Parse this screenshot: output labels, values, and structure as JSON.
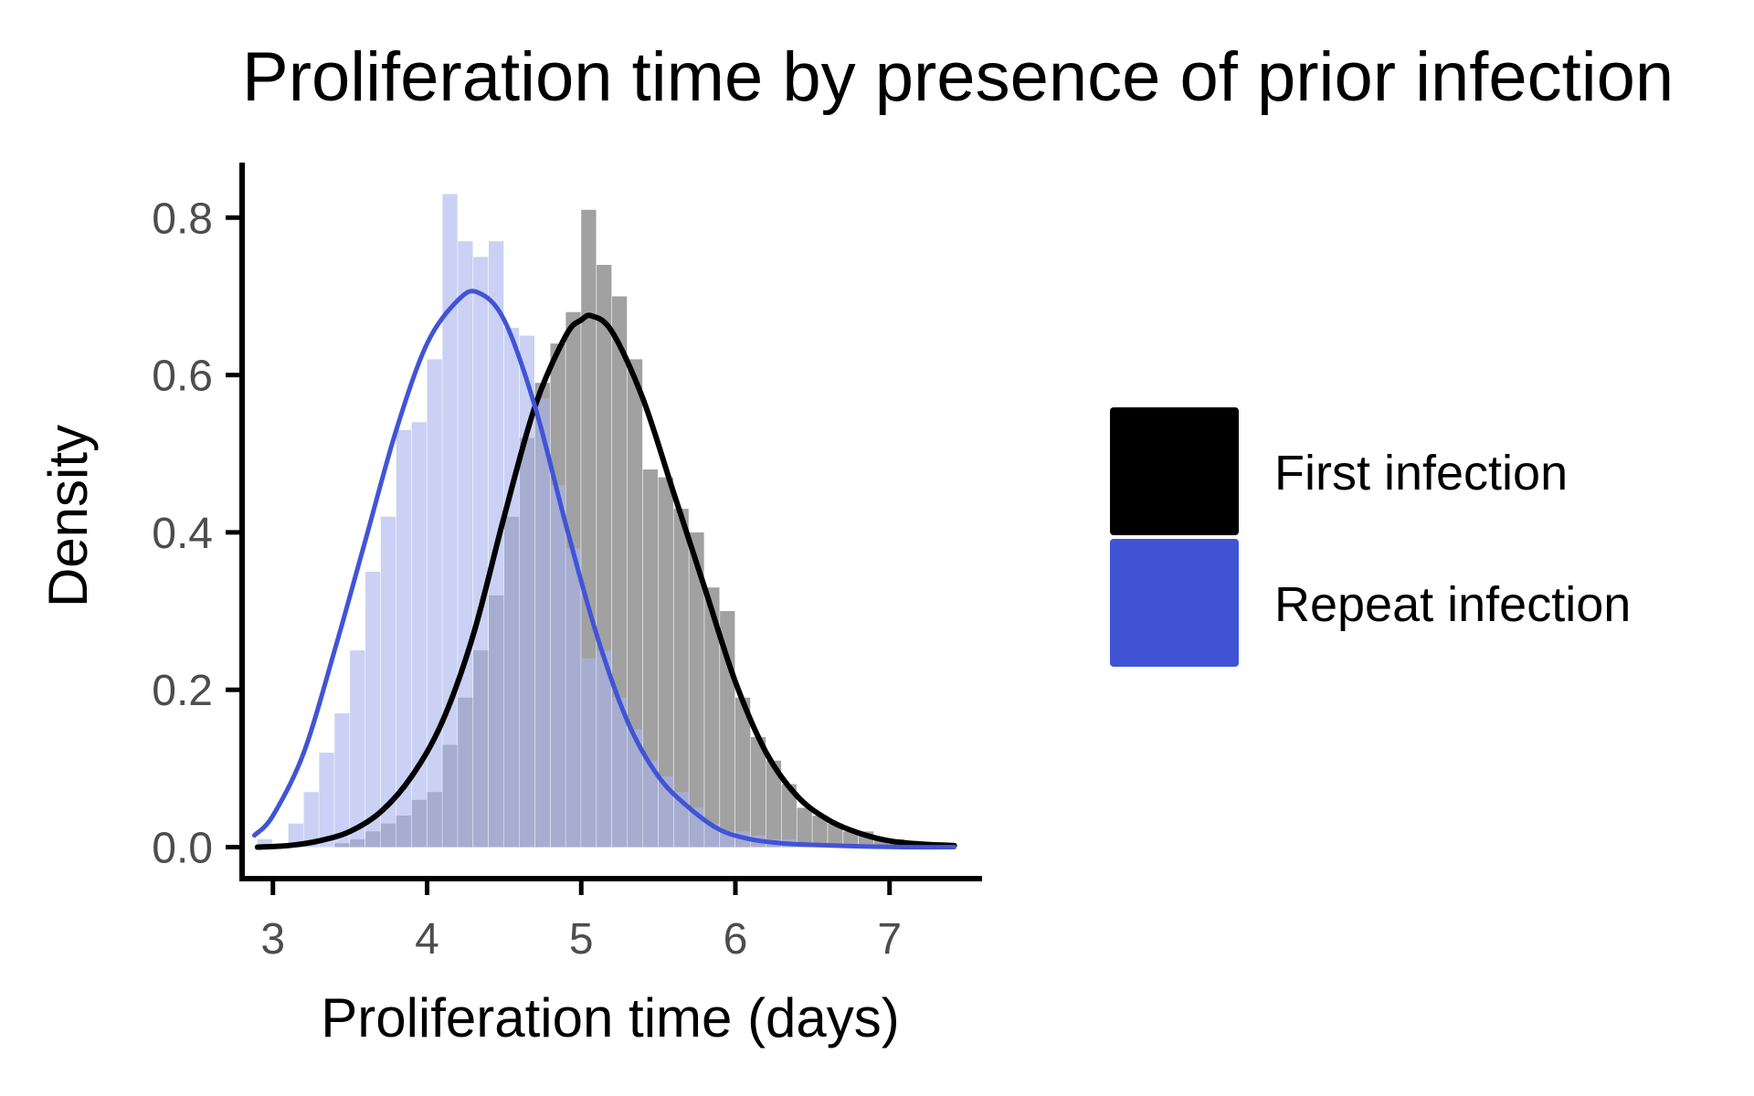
{
  "chart_data": {
    "type": "histogram",
    "title": "Proliferation time by presence of prior infection",
    "xlabel": "Proliferation time (days)",
    "ylabel": "Density",
    "xlim": [
      2.8,
      7.6
    ],
    "ylim": [
      -0.04,
      0.87
    ],
    "x_ticks": [
      3,
      4,
      5,
      6,
      7
    ],
    "x_tick_labels": [
      "3",
      "4",
      "5",
      "6",
      "7"
    ],
    "y_ticks": [
      0.0,
      0.2,
      0.4,
      0.6,
      0.8
    ],
    "y_tick_labels": [
      "0.0",
      "0.2",
      "0.4",
      "0.6",
      "0.8"
    ],
    "grid": false,
    "legend_position": "right",
    "bin_width": 0.1,
    "series": [
      {
        "name": "First infection",
        "color": "#000000",
        "bar_color": "#8c8c8c",
        "bins_start": [
          3.4,
          3.5,
          3.6,
          3.7,
          3.8,
          3.9,
          4.0,
          4.1,
          4.2,
          4.3,
          4.4,
          4.5,
          4.6,
          4.7,
          4.8,
          4.9,
          5.0,
          5.1,
          5.2,
          5.3,
          5.4,
          5.5,
          5.6,
          5.7,
          5.8,
          5.9,
          6.0,
          6.1,
          6.2,
          6.3,
          6.4,
          6.5,
          6.6,
          6.7,
          6.8,
          6.9,
          7.0,
          7.1,
          7.2,
          7.3
        ],
        "density": [
          0.005,
          0.01,
          0.02,
          0.03,
          0.04,
          0.06,
          0.07,
          0.13,
          0.19,
          0.25,
          0.32,
          0.42,
          0.52,
          0.59,
          0.64,
          0.68,
          0.81,
          0.74,
          0.7,
          0.62,
          0.48,
          0.47,
          0.43,
          0.4,
          0.33,
          0.3,
          0.19,
          0.14,
          0.11,
          0.08,
          0.05,
          0.04,
          0.03,
          0.02,
          0.02,
          0.01,
          0.01,
          0.005,
          0.003,
          0.002
        ],
        "curve_x": [
          2.9,
          3.1,
          3.3,
          3.5,
          3.7,
          3.9,
          4.1,
          4.3,
          4.5,
          4.7,
          4.9,
          5.0,
          5.07,
          5.2,
          5.4,
          5.6,
          5.8,
          6.0,
          6.2,
          6.4,
          6.6,
          6.8,
          7.0,
          7.2,
          7.42
        ],
        "curve_y": [
          0.0,
          0.002,
          0.008,
          0.02,
          0.045,
          0.09,
          0.16,
          0.27,
          0.42,
          0.56,
          0.65,
          0.67,
          0.675,
          0.655,
          0.57,
          0.45,
          0.33,
          0.21,
          0.12,
          0.065,
          0.035,
          0.018,
          0.008,
          0.004,
          0.002
        ]
      },
      {
        "name": "Repeat infection",
        "color": "#4154d6",
        "bar_color": "#aab4ee",
        "bins_start": [
          2.9,
          3.0,
          3.1,
          3.2,
          3.3,
          3.4,
          3.5,
          3.6,
          3.7,
          3.8,
          3.9,
          4.0,
          4.1,
          4.2,
          4.3,
          4.4,
          4.5,
          4.6,
          4.7,
          4.8,
          4.9,
          5.0,
          5.1,
          5.2,
          5.3,
          5.4,
          5.5,
          5.6,
          5.7,
          5.8,
          5.9,
          6.0,
          6.1,
          6.2,
          6.3,
          6.4,
          6.5,
          6.6,
          6.7,
          6.8,
          6.9,
          7.0
        ],
        "density": [
          0.01,
          0.005,
          0.03,
          0.07,
          0.12,
          0.17,
          0.25,
          0.35,
          0.42,
          0.53,
          0.54,
          0.62,
          0.83,
          0.77,
          0.75,
          0.77,
          0.66,
          0.65,
          0.57,
          0.46,
          0.38,
          0.24,
          0.25,
          0.19,
          0.15,
          0.11,
          0.09,
          0.07,
          0.05,
          0.03,
          0.02,
          0.02,
          0.015,
          0.01,
          0.01,
          0.005,
          0.005,
          0.003,
          0.002,
          0.002,
          0.001,
          0.001
        ],
        "curve_x": [
          2.88,
          3.0,
          3.2,
          3.4,
          3.6,
          3.8,
          4.0,
          4.2,
          4.33,
          4.5,
          4.7,
          4.9,
          5.1,
          5.3,
          5.5,
          5.7,
          5.9,
          6.1,
          6.3,
          6.5,
          6.8,
          7.1,
          7.42
        ],
        "curve_y": [
          0.015,
          0.04,
          0.12,
          0.25,
          0.39,
          0.53,
          0.64,
          0.695,
          0.705,
          0.67,
          0.56,
          0.41,
          0.27,
          0.16,
          0.09,
          0.05,
          0.022,
          0.01,
          0.005,
          0.003,
          0.001,
          0.0,
          0.0
        ]
      }
    ]
  }
}
